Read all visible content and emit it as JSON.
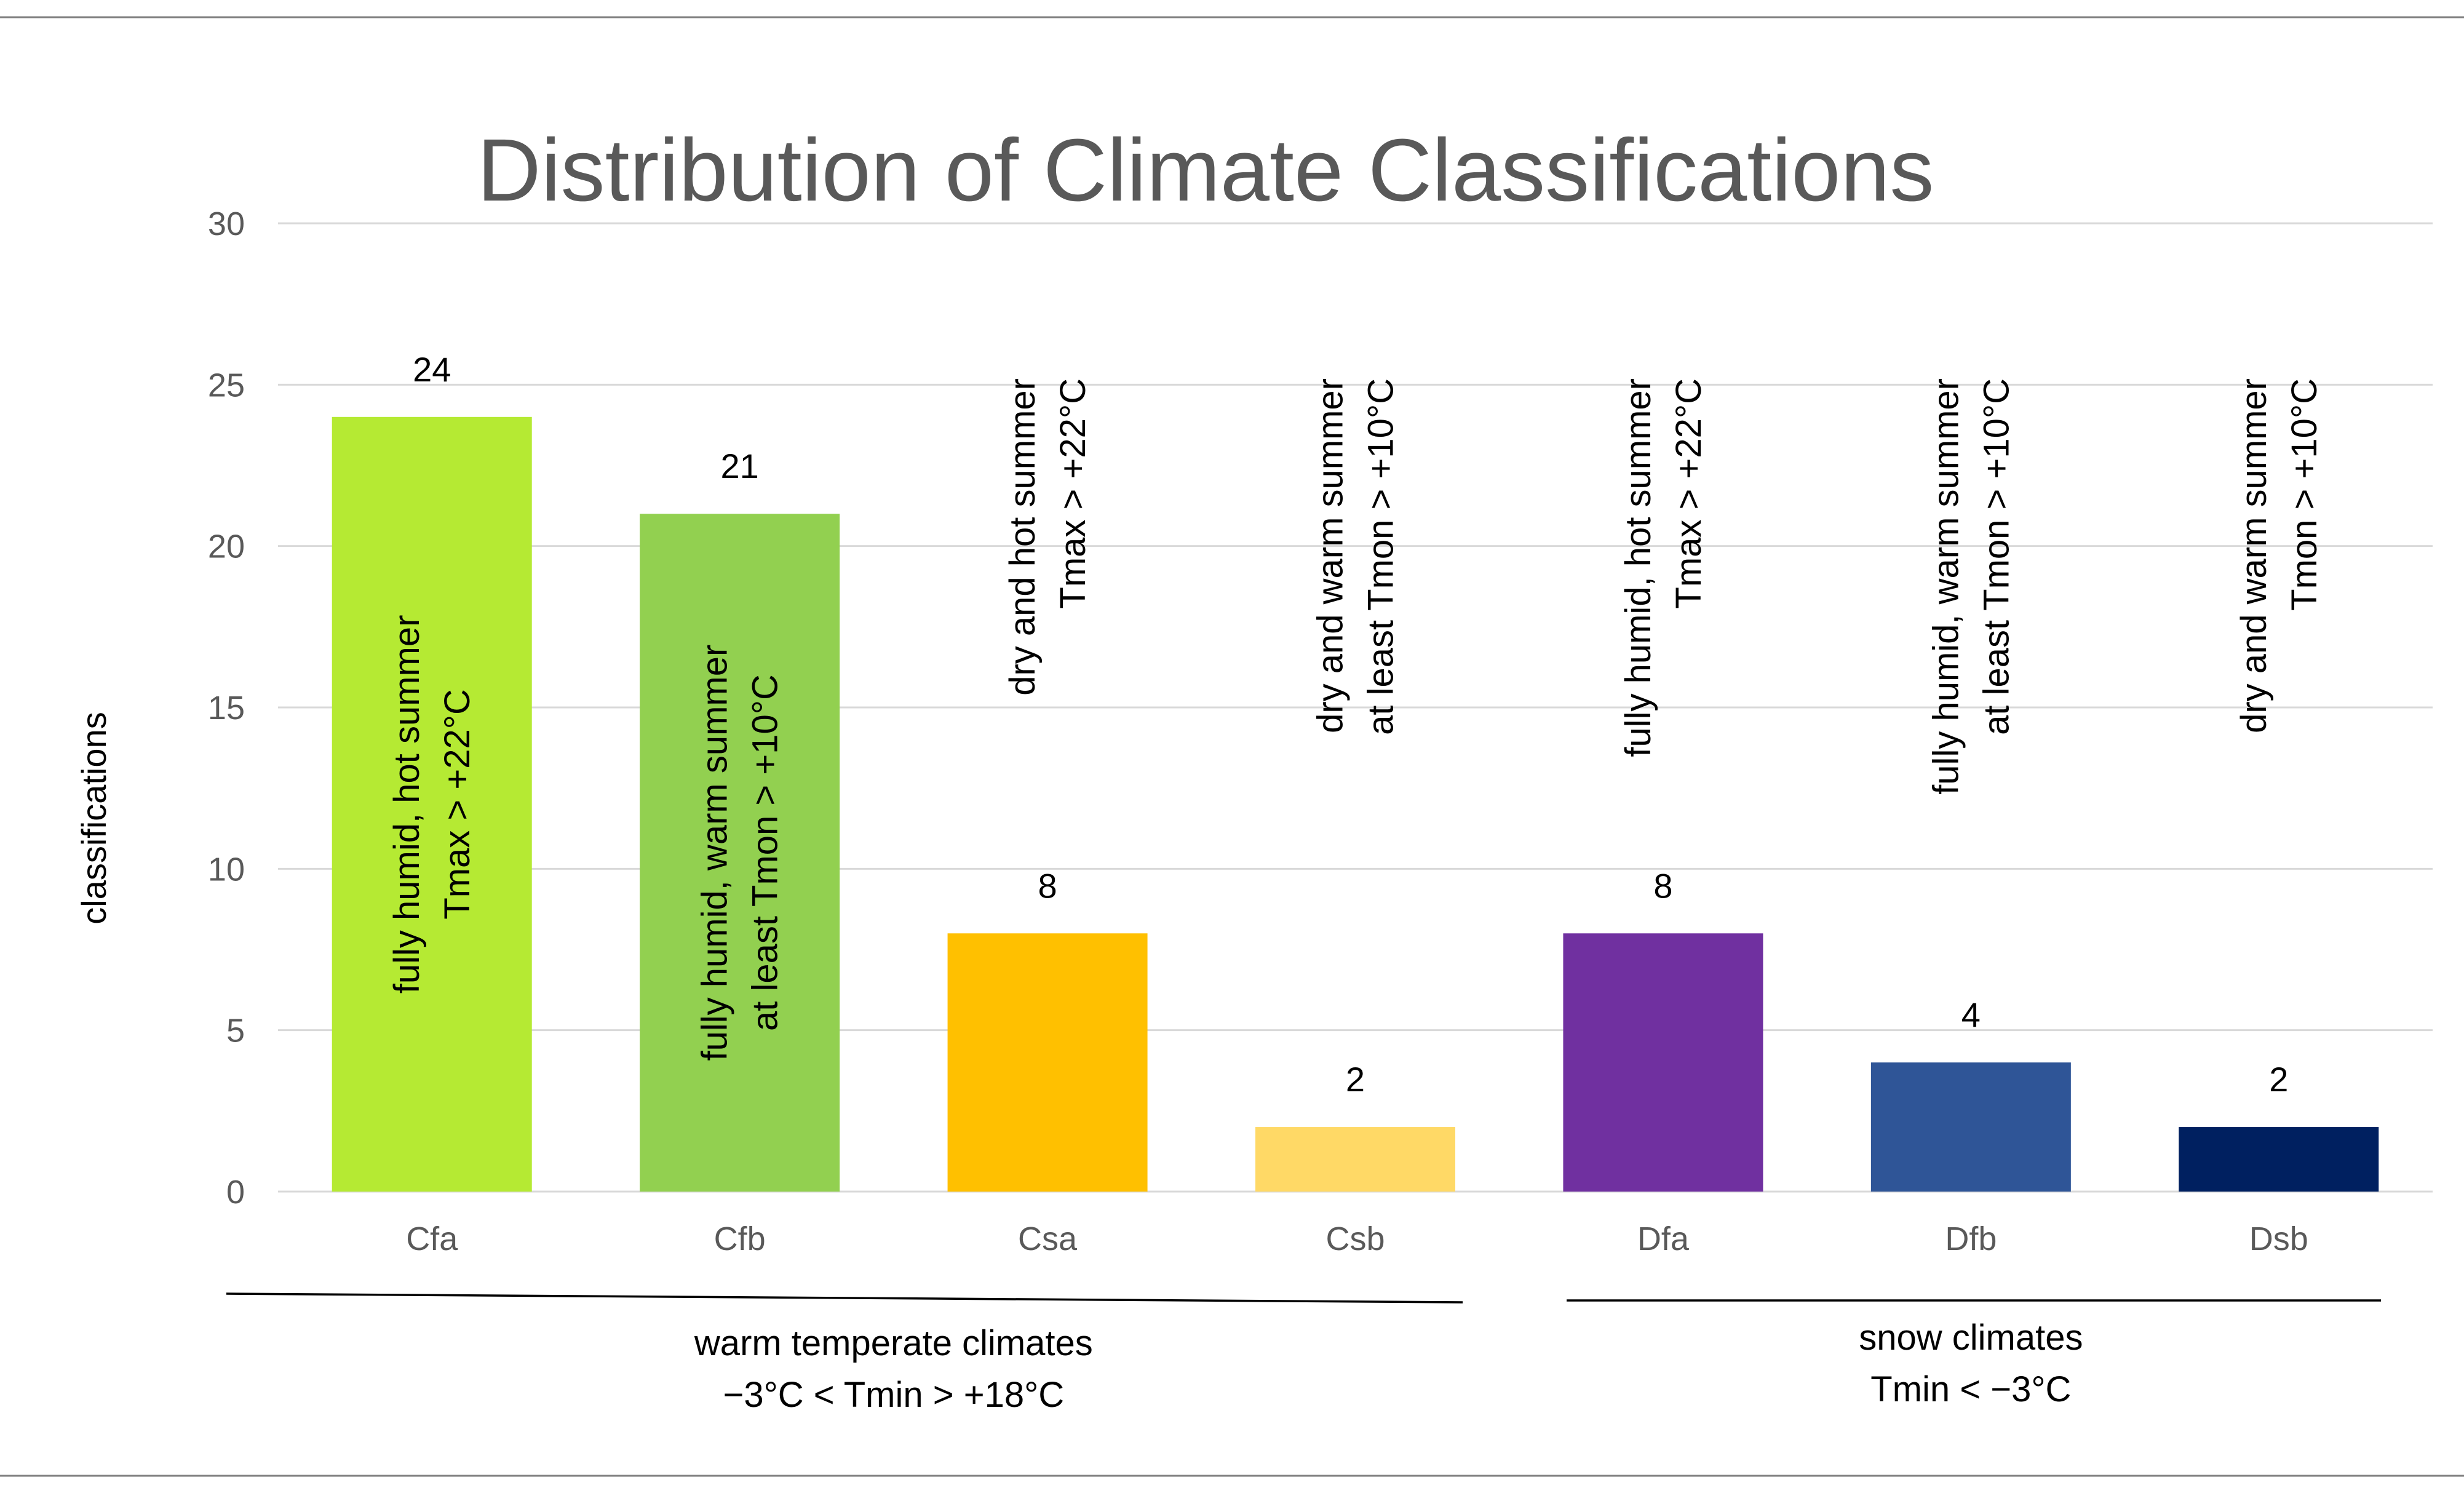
{
  "chart_data": {
    "type": "bar",
    "title": "Distribution of Climate Classifications",
    "xlabel": "",
    "ylabel": "classifications",
    "ylim": [
      0,
      30
    ],
    "yticks": [
      0,
      5,
      10,
      15,
      20,
      25,
      30
    ],
    "grid": true,
    "categories": [
      "Cfa",
      "Cfb",
      "Csa",
      "Csb",
      "Dfa",
      "Dfb",
      "Dsb"
    ],
    "values": [
      24,
      21,
      8,
      2,
      8,
      4,
      2
    ],
    "colors": [
      "#b5ea33",
      "#92d050",
      "#ffc000",
      "#ffd966",
      "#7030a0",
      "#2f5597",
      "#002060"
    ],
    "descriptions": [
      [
        "fully humid, hot summer",
        "Tmax > +22°C"
      ],
      [
        "fully humid, warm summer",
        "at least Tmon > +10°C"
      ],
      [
        "dry and hot summer",
        "Tmax > +22°C"
      ],
      [
        "dry and warm summer",
        "at least Tmon > +10°C"
      ],
      [
        "fully humid, hot summer",
        "Tmax > +22°C"
      ],
      [
        "fully humid, warm summer",
        "at least Tmon > +10°C"
      ],
      [
        "dry and warm summer",
        "Tmon > +10°C"
      ]
    ],
    "groups": [
      {
        "label_lines": [
          "warm temperate climates",
          "−3°C < Tmin > +18°C"
        ],
        "from": "Cfa",
        "to": "Csb"
      },
      {
        "label_lines": [
          "snow climates",
          "Tmin < −3°C"
        ],
        "from": "Dfa",
        "to": "Dsb"
      }
    ]
  }
}
